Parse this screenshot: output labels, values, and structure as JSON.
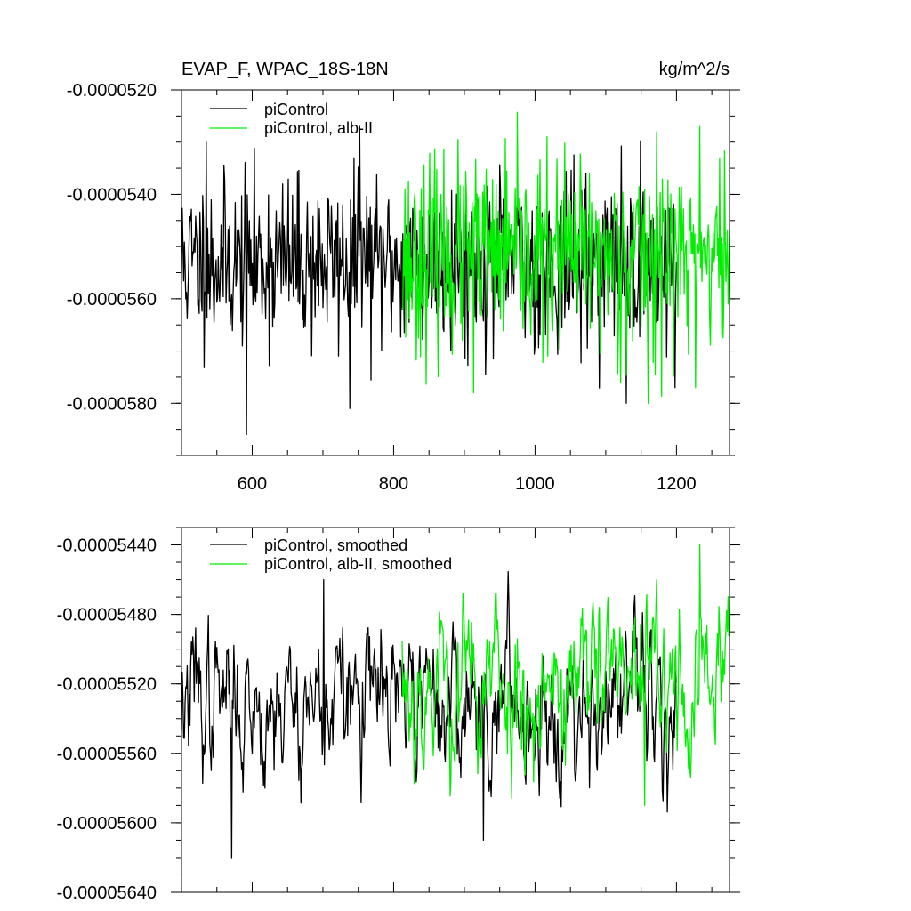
{
  "chart_data": [
    {
      "type": "line",
      "title": "EVAP_F, WPAC_18S-18N",
      "units": "kg/m^2/s",
      "xlabel": "",
      "ylabel": "",
      "xlim": [
        500,
        1275
      ],
      "ylim": [
        -5.9e-05,
        -5.2e-05
      ],
      "x_ticks": [
        600,
        800,
        1000,
        1200
      ],
      "x_tick_labels": [
        "600",
        "800",
        "1000",
        "1200"
      ],
      "y_ticks": [
        -5.2e-05,
        -5.4e-05,
        -5.6e-05,
        -5.8e-05
      ],
      "y_tick_labels": [
        "-0.0000520",
        "-0.0000540",
        "-0.0000560",
        "-0.0000580"
      ],
      "grid": false,
      "legend_position": "top-left",
      "series": [
        {
          "name": "piControl",
          "color": "#000000",
          "x_start": 500,
          "x_end": 1200,
          "mean": -5.53e-05,
          "std": 8e-07,
          "seed": 11,
          "extremes": [
            [
              535,
              -5.3e-05
            ],
            [
              592,
              -5.86e-05
            ],
            [
              752,
              -5.27e-05
            ],
            [
              738,
              -5.81e-05
            ],
            [
              1129,
              -5.8e-05
            ],
            [
              1198,
              -5.77e-05
            ]
          ]
        },
        {
          "name": "piControl, alb-II",
          "color": "#00ee00",
          "x_start": 812,
          "x_end": 1275,
          "mean": -5.52e-05,
          "std": 9e-07,
          "seed": 23,
          "extremes": [
            [
              1172,
              -5.28e-05
            ],
            [
              1233,
              -5.27e-05
            ],
            [
              1160,
              -5.8e-05
            ],
            [
              1227,
              -5.77e-05
            ],
            [
              913,
              -5.78e-05
            ]
          ]
        }
      ]
    },
    {
      "type": "line",
      "title": "",
      "units": "",
      "xlabel": "",
      "ylabel": "",
      "xlim": [
        500,
        1275
      ],
      "ylim": [
        -5.64e-05,
        -5.43e-05
      ],
      "x_ticks": [
        600,
        800,
        1000,
        1200
      ],
      "y_ticks": [
        -5.44e-05,
        -5.48e-05,
        -5.52e-05,
        -5.56e-05,
        -5.6e-05,
        -5.64e-05
      ],
      "y_tick_labels": [
        "-0.00005440",
        "-0.00005480",
        "-0.00005520",
        "-0.00005560",
        "-0.00005600",
        "-0.00005640"
      ],
      "grid": false,
      "legend_position": "top-left",
      "series": [
        {
          "name": "piControl, smoothed",
          "color": "#000000",
          "x_start": 500,
          "x_end": 1200,
          "mean": -5.53e-05,
          "std": 2.2e-07,
          "seed": 37,
          "extremes": [
            [
              571,
              -5.62e-05
            ],
            [
              701,
              -5.46e-05
            ],
            [
              927,
              -5.61e-05
            ]
          ]
        },
        {
          "name": "piControl, alb-II, smoothed",
          "color": "#00ee00",
          "x_start": 812,
          "x_end": 1275,
          "mean": -5.52e-05,
          "std": 2.5e-07,
          "seed": 53,
          "extremes": [
            [
              1233,
              -5.44e-05
            ],
            [
              1172,
              -5.46e-05
            ],
            [
              1155,
              -5.59e-05
            ]
          ]
        }
      ]
    }
  ]
}
